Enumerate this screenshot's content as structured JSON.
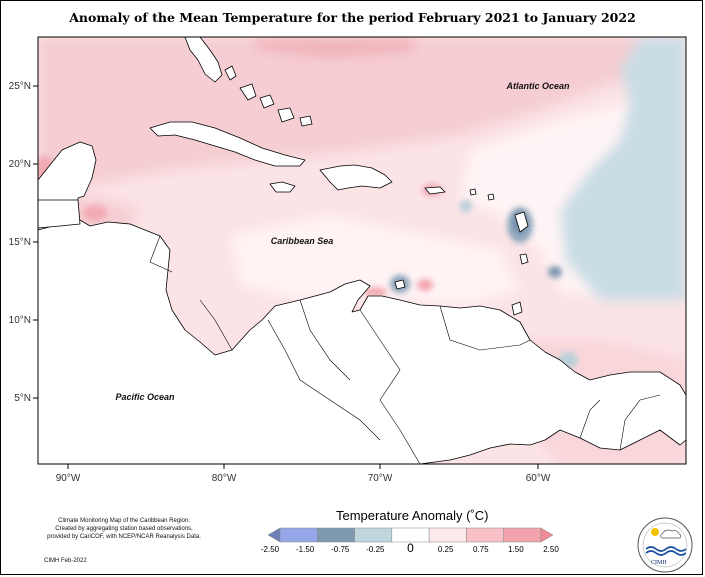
{
  "title": "Anomaly of the Mean Temperature for the period February 2021 to January 2022",
  "axes": {
    "lat_ticks": [
      "25°N",
      "20°N",
      "15°N",
      "10°N",
      "5°N"
    ],
    "lon_ticks": [
      "90°W",
      "80°W",
      "70°W",
      "60°W"
    ]
  },
  "labels": {
    "atlantic": "Atlantic Ocean",
    "caribbean": "Caribbean Sea",
    "pacific": "Pacific Ocean"
  },
  "legend": {
    "title": "Temperature Anomaly (˚C)",
    "ticks": [
      "-2.50",
      "-1.50",
      "-0.75",
      "-0.25",
      "0",
      "0.25",
      "0.75",
      "1.50",
      "2.50"
    ],
    "colors": [
      "#6d7fb6",
      "#95a7e8",
      "#7f9ab0",
      "#c0d6df",
      "#ffffff",
      "#fde8ea",
      "#f7c1c7",
      "#f2a3ad",
      "#f08a94"
    ]
  },
  "footnote": {
    "line1": "Climate Monitoring Map of the Caribbean Region.",
    "line2": "Created by aggregating station based observations,",
    "line3": "provided by CariCOF, with NCEP/NCAR Reanalysis Data.",
    "credit": "CIMH Feb-2022"
  },
  "logo": {
    "text": "CIMH"
  }
}
